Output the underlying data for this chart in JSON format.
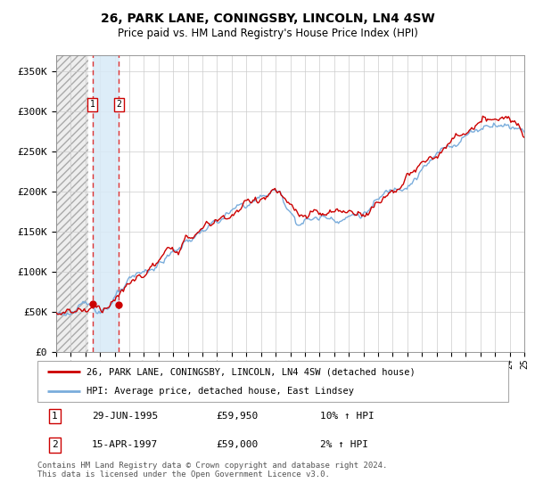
{
  "title": "26, PARK LANE, CONINGSBY, LINCOLN, LN4 4SW",
  "subtitle": "Price paid vs. HM Land Registry's House Price Index (HPI)",
  "title_fontsize": 10,
  "subtitle_fontsize": 8.5,
  "ylim": [
    0,
    370000
  ],
  "yticks": [
    0,
    50000,
    100000,
    150000,
    200000,
    250000,
    300000,
    350000
  ],
  "ytick_labels": [
    "£0",
    "£50K",
    "£100K",
    "£150K",
    "£200K",
    "£250K",
    "£300K",
    "£350K"
  ],
  "year_start": 1993,
  "year_end": 2025,
  "hpi_color": "#7aaddc",
  "price_color": "#cc0000",
  "marker_color": "#cc0000",
  "vline_color": "#dd3333",
  "shade_color": "#d8eaf7",
  "sale1_date_num": 1995.49,
  "sale1_price": 59950,
  "sale2_date_num": 1997.29,
  "sale2_price": 59000,
  "legend_label1": "26, PARK LANE, CONINGSBY, LINCOLN, LN4 4SW (detached house)",
  "legend_label2": "HPI: Average price, detached house, East Lindsey",
  "table_row1": [
    "1",
    "29-JUN-1995",
    "£59,950",
    "10% ↑ HPI"
  ],
  "table_row2": [
    "2",
    "15-APR-1997",
    "£59,000",
    "2% ↑ HPI"
  ],
  "footer": "Contains HM Land Registry data © Crown copyright and database right 2024.\nThis data is licensed under the Open Government Licence v3.0.",
  "background_color": "#ffffff",
  "plot_bg_color": "#ffffff",
  "grid_color": "#cccccc"
}
